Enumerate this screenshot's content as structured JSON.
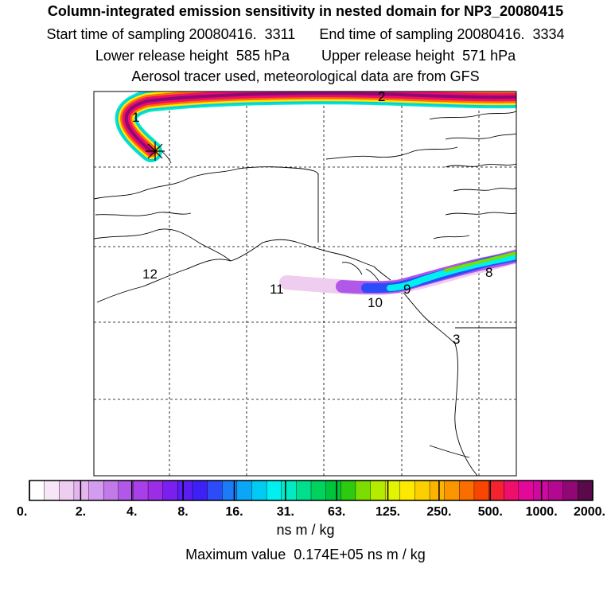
{
  "header": {
    "title": "Column-integrated emission sensitivity in nested domain for NP3_20080415",
    "row2": "Start time of sampling 20080416.  3311      End time of sampling 20080416.  3334",
    "row3": "Lower release height  585 hPa        Upper release height  571 hPa",
    "row4": "Aerosol tracer used, meteorological data are from GFS"
  },
  "map": {
    "labels": [
      "1",
      "2",
      "8",
      "9",
      "10",
      "11",
      "12",
      "3"
    ]
  },
  "colorbar": {
    "colors": [
      "#ffffff",
      "#f7e6f7",
      "#efcdf0",
      "#e3b4ee",
      "#d49cee",
      "#c27ae9",
      "#b158e8",
      "#a83fe8",
      "#9c2ce6",
      "#7a1ff0",
      "#5a1ef4",
      "#3e20f6",
      "#2b4cf8",
      "#1c7cf8",
      "#0aa7f6",
      "#00cbf2",
      "#00f0f0",
      "#00eac4",
      "#00df8e",
      "#00d25e",
      "#00c53c",
      "#2ccb10",
      "#7bde00",
      "#b4ec00",
      "#e3f400",
      "#fde800",
      "#fccf00",
      "#fcb400",
      "#fb9500",
      "#fa6e00",
      "#f84600",
      "#f52230",
      "#ef0e6c",
      "#e30899",
      "#d0089f",
      "#b50892",
      "#8f0874",
      "#5a0a4a"
    ],
    "tick_labels": [
      "0.",
      "2.",
      "4.",
      "8.",
      "16.",
      "31.",
      "63.",
      "125.",
      "250.",
      "500.",
      "1000.",
      "2000."
    ],
    "units": "ns m / kg"
  },
  "footer": {
    "max_value": "Maximum value  0.174E+05 ns m / kg"
  }
}
